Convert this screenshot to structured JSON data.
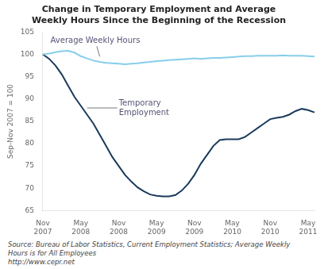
{
  "chart_data": {
    "type": "line",
    "title": "Change in Temporary Employment and Average\nWeekly Hours Since the Beginning of the Recession",
    "y_label": "Sep-Nov 2007 = 100",
    "source": "Source: Bureau of Labor Statistics, Current Employment Statistics; Average Weekly\nHours is for All Employees\nhttp://www.cepr.net",
    "categories": [
      "Nov\n2007",
      null,
      null,
      null,
      null,
      null,
      "May\n2008",
      null,
      null,
      null,
      null,
      null,
      "Nov\n2008",
      null,
      null,
      null,
      null,
      null,
      "May\n2009",
      null,
      null,
      null,
      null,
      null,
      "Nov\n2009",
      null,
      null,
      null,
      null,
      null,
      "May\n2010",
      null,
      null,
      null,
      null,
      null,
      "Nov\n2010",
      null,
      null,
      null,
      null,
      null,
      "May\n2011",
      null
    ],
    "series": [
      {
        "color": "#87CEEB",
        "values": [
          100.0,
          100.2,
          100.5,
          100.7,
          100.8,
          100.4,
          99.6,
          99.1,
          98.6,
          98.3,
          98.1,
          98.0,
          97.9,
          97.8,
          97.9,
          98.0,
          98.2,
          98.3,
          98.5,
          98.6,
          98.7,
          98.8,
          98.9,
          99.0,
          99.1,
          99.0,
          99.1,
          99.2,
          99.2,
          99.3,
          99.4,
          99.5,
          99.6,
          99.6,
          99.7,
          99.7,
          99.7,
          99.7,
          99.8,
          99.7,
          99.7,
          99.7,
          99.6,
          99.5
        ]
      },
      {
        "color": "#1a3a5c",
        "values": [
          100.0,
          99.0,
          97.5,
          95.5,
          93.0,
          90.5,
          88.5,
          86.5,
          84.5,
          82.0,
          79.5,
          77.0,
          75.0,
          73.0,
          71.5,
          70.2,
          69.3,
          68.6,
          68.3,
          68.2,
          68.2,
          68.5,
          69.5,
          71.0,
          73.0,
          75.5,
          77.5,
          79.5,
          80.8,
          81.0,
          81.0,
          81.0,
          81.5,
          82.5,
          83.5,
          84.5,
          85.5,
          85.8,
          86.0,
          86.5,
          87.3,
          87.8,
          87.5,
          87.0
        ]
      }
    ],
    "annotations": [
      {
        "text": "Average Weekly Hours",
        "x": 9,
        "y": 99.5
      },
      {
        "text": "Temporary\nEmployment",
        "x": 7,
        "y": 88.0
      }
    ],
    "ylim": [
      65,
      105
    ],
    "yticks": [
      65,
      70,
      75,
      80,
      85,
      90,
      95,
      100,
      105
    ],
    "grid": false
  }
}
